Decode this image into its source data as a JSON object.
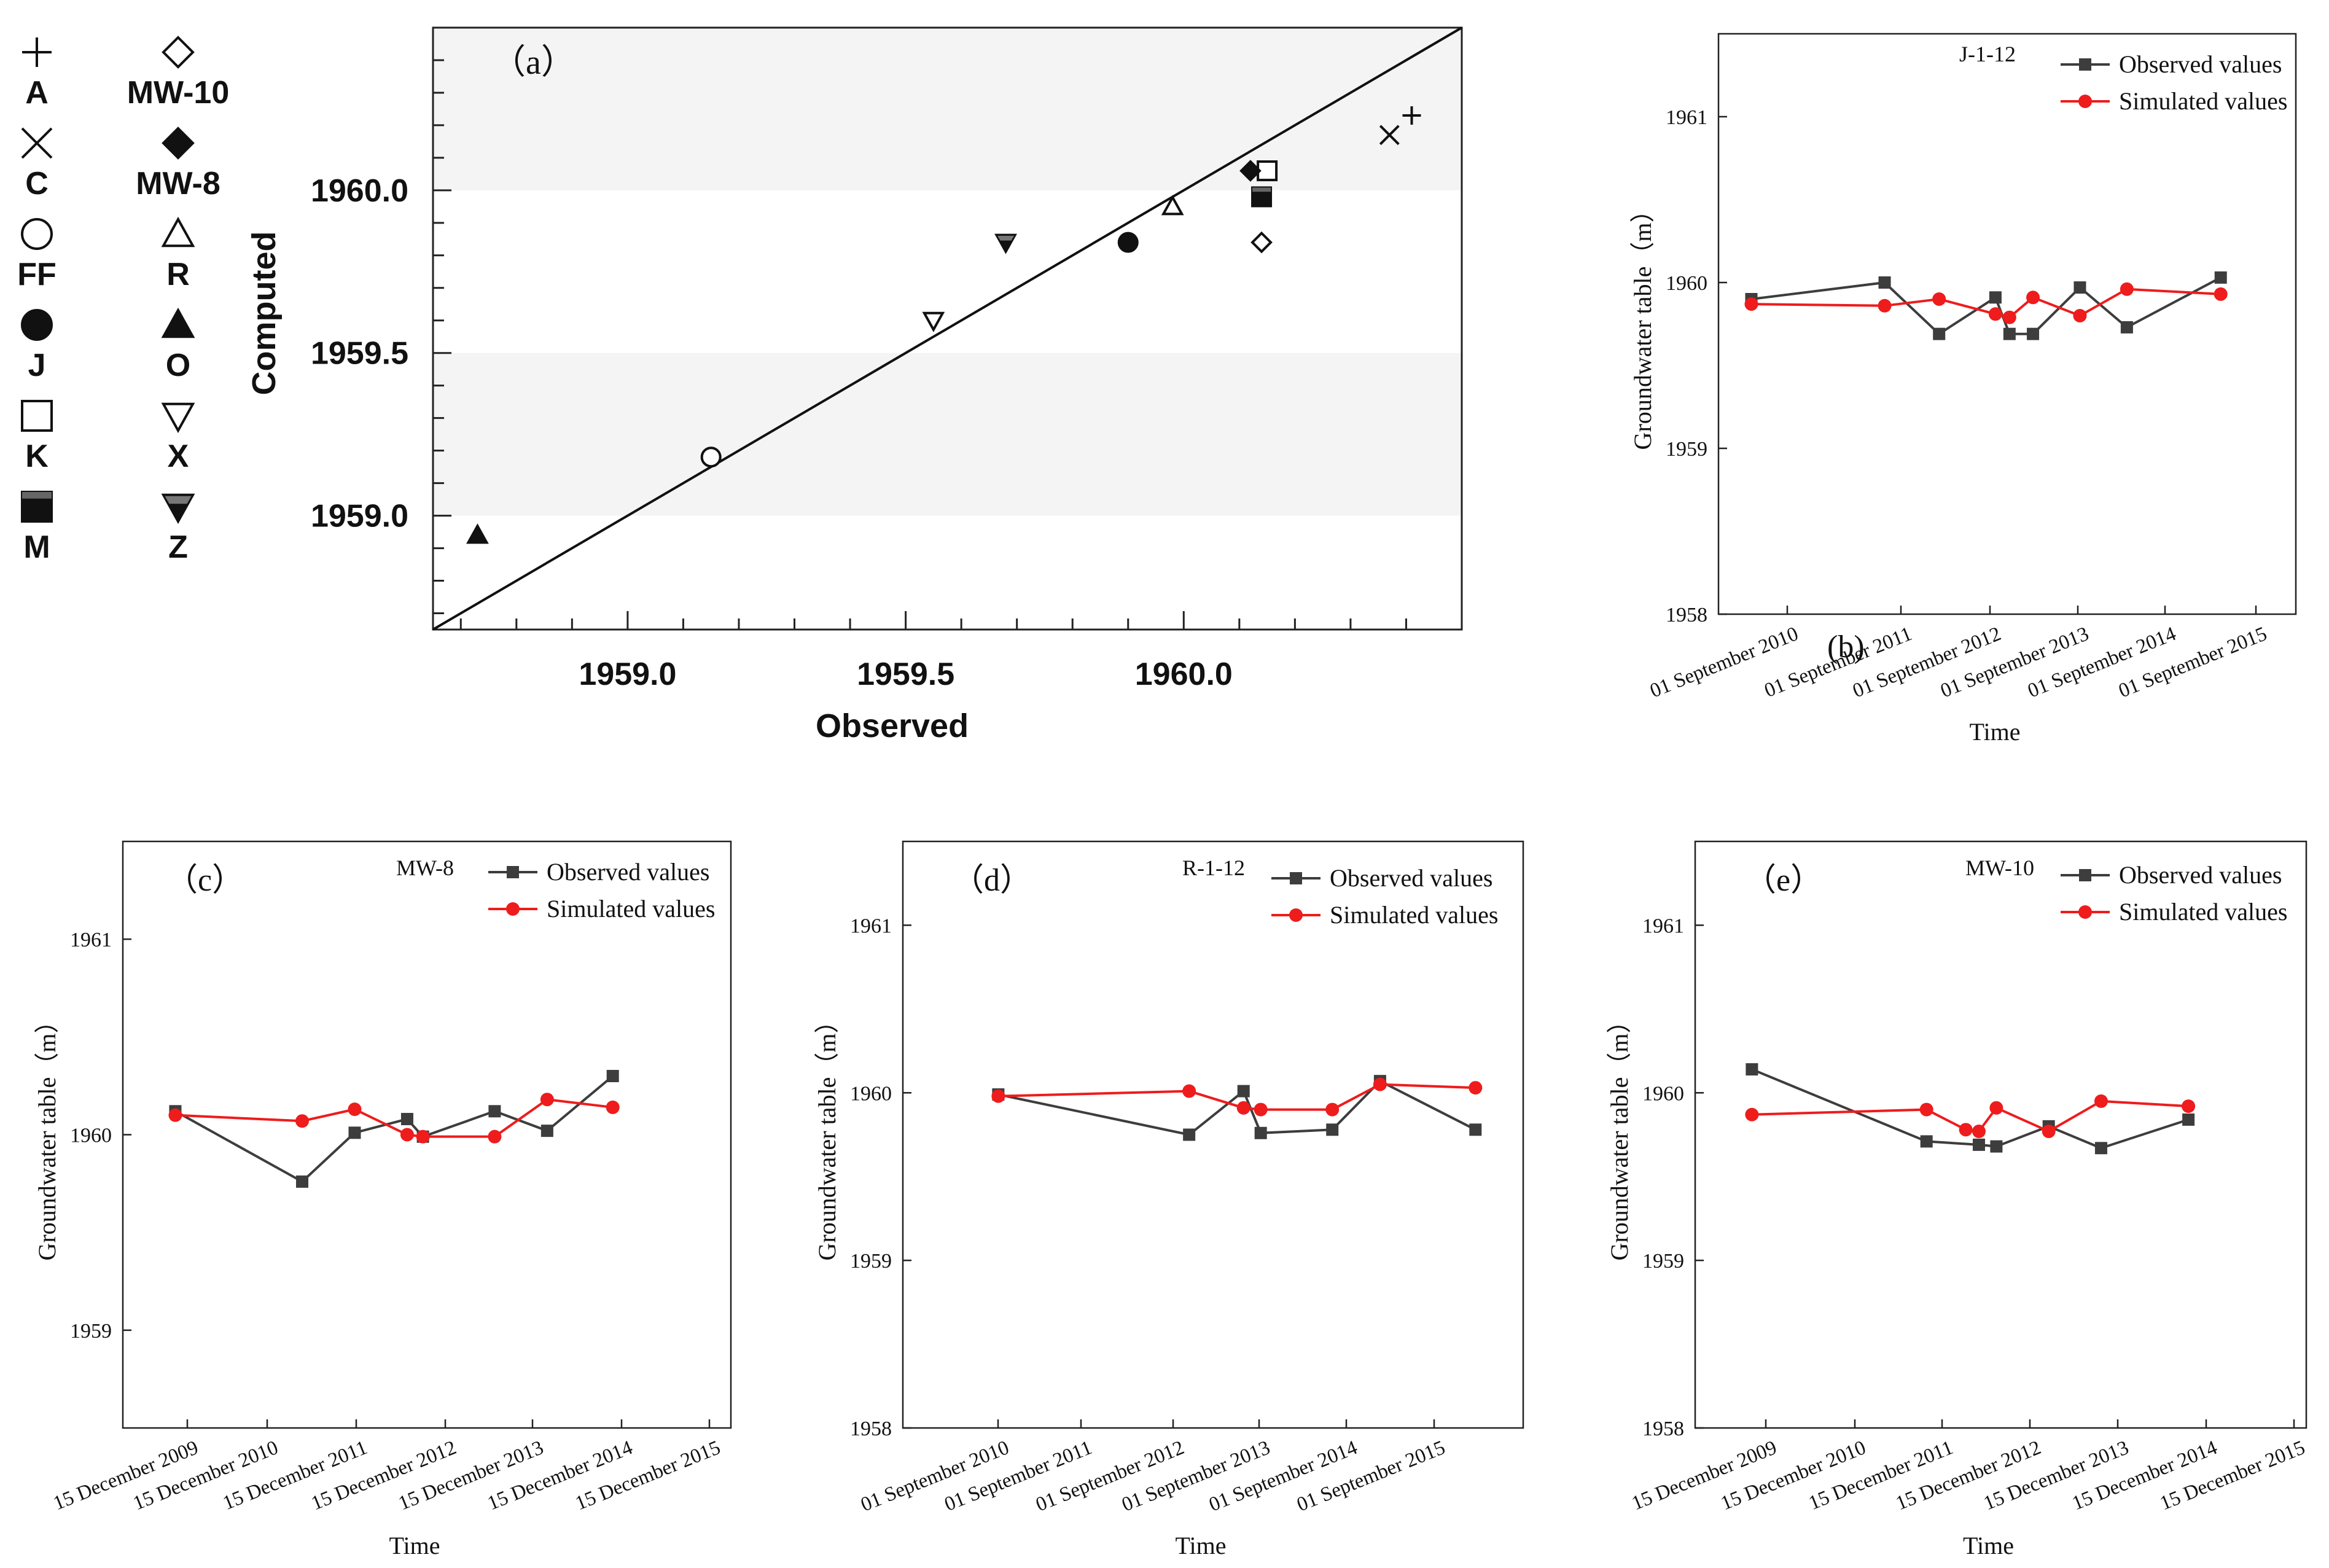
{
  "chart_data": [
    {
      "id": "a",
      "type": "scatter",
      "panel_label": "（a）",
      "xlabel": "Observed",
      "ylabel": "Computed",
      "xlim": [
        1958.65,
        1960.5
      ],
      "ylim": [
        1958.65,
        1960.5
      ],
      "x_ticks": [
        "1959.0",
        "1959.5",
        "1960.0"
      ],
      "y_ticks": [
        "1959.0",
        "1959.5",
        "1960.0"
      ],
      "x_tick_values": [
        1959.0,
        1959.5,
        1960.0
      ],
      "y_tick_values": [
        1959.0,
        1959.5,
        1960.0
      ],
      "shaded_bands": [
        [
          1959.0,
          1959.5
        ],
        [
          1960.0,
          1960.5
        ]
      ],
      "reference_line": "1:1",
      "legend_placement": "left",
      "points": [
        {
          "name": "A",
          "marker": "plus",
          "x": 1960.41,
          "y": 1960.23
        },
        {
          "name": "C",
          "marker": "cross",
          "x": 1960.37,
          "y": 1960.17
        },
        {
          "name": "FF",
          "marker": "circle-open",
          "x": 1959.15,
          "y": 1959.18
        },
        {
          "name": "J",
          "marker": "circle-half",
          "x": 1959.9,
          "y": 1959.84
        },
        {
          "name": "K",
          "marker": "square-open",
          "x": 1960.15,
          "y": 1960.06
        },
        {
          "name": "M",
          "marker": "square-half",
          "x": 1960.14,
          "y": 1959.98
        },
        {
          "name": "MW-10",
          "marker": "diamond-open",
          "x": 1960.14,
          "y": 1959.84
        },
        {
          "name": "MW-8",
          "marker": "diamond-filled",
          "x": 1960.12,
          "y": 1960.06
        },
        {
          "name": "R",
          "marker": "triangle-open",
          "x": 1959.98,
          "y": 1959.95
        },
        {
          "name": "O",
          "marker": "triangle-filled",
          "x": 1958.73,
          "y": 1958.94
        },
        {
          "name": "X",
          "marker": "triangle-down-open",
          "x": 1959.55,
          "y": 1959.6
        },
        {
          "name": "Z",
          "marker": "triangle-down-half",
          "x": 1959.68,
          "y": 1959.84
        }
      ],
      "legend_columns": [
        [
          "A",
          "C",
          "FF",
          "J",
          "K",
          "M"
        ],
        [
          "MW-10",
          "MW-8",
          "R",
          "O",
          "X",
          "Z"
        ]
      ]
    },
    {
      "id": "b",
      "type": "line",
      "panel_label": "(b)",
      "well": "J-1-12",
      "xlabel": "Time",
      "ylabel": "Groundwater table（m）",
      "x_ticks": [
        "01 September 2010",
        "01 September 2011",
        "01 September 2012",
        "01 September 2013",
        "01 September 2014",
        "01 September 2015"
      ],
      "y_ticks": [
        "1958",
        "1959",
        "1960",
        "1961"
      ],
      "y_tick_values": [
        1958,
        1959,
        1960,
        1961
      ],
      "xlim": [
        2009.65,
        2015.8
      ],
      "ylim": [
        1958,
        1961.5
      ],
      "series": [
        {
          "name": "Observed values",
          "color": "#3d3d3d",
          "marker": "square",
          "x": [
            2010.0,
            2011.42,
            2012.0,
            2012.6,
            2012.75,
            2013.0,
            2013.5,
            2014.0,
            2015.0
          ],
          "y": [
            1959.9,
            1960.0,
            1959.69,
            1959.91,
            1959.69,
            1959.69,
            1959.97,
            1959.73,
            1960.03
          ]
        },
        {
          "name": "Simulated values",
          "color": "#ee1c1c",
          "marker": "circle",
          "x": [
            2010.0,
            2011.42,
            2012.0,
            2012.6,
            2012.75,
            2013.0,
            2013.5,
            2014.0,
            2015.0
          ],
          "y": [
            1959.87,
            1959.86,
            1959.9,
            1959.81,
            1959.79,
            1959.91,
            1959.8,
            1959.96,
            1959.93
          ]
        }
      ]
    },
    {
      "id": "c",
      "type": "line",
      "panel_label": "（c）",
      "well": "MW-8",
      "xlabel": "Time",
      "ylabel": "Groundwater table（m）",
      "x_ticks": [
        "15 December 2009",
        "15 December 2010",
        "15 December 2011",
        "15 December 2012",
        "15 December 2013",
        "15 December 2014",
        "15 December 2015"
      ],
      "y_ticks": [
        "1959",
        "1960",
        "1961"
      ],
      "y_tick_values": [
        1959,
        1960,
        1961
      ],
      "xlim": [
        2009.35,
        2016.3
      ],
      "ylim": [
        1958.5,
        1961.5
      ],
      "series": [
        {
          "name": "Observed values",
          "color": "#3d3d3d",
          "marker": "square",
          "x": [
            2009.95,
            2011.4,
            2012.0,
            2012.6,
            2012.78,
            2013.6,
            2014.2,
            2014.95
          ],
          "y": [
            1960.12,
            1959.76,
            1960.01,
            1960.08,
            1959.99,
            1960.12,
            1960.02,
            1960.3
          ]
        },
        {
          "name": "Simulated values",
          "color": "#ee1c1c",
          "marker": "circle",
          "x": [
            2009.95,
            2011.4,
            2012.0,
            2012.6,
            2012.78,
            2013.6,
            2014.2,
            2014.95
          ],
          "y": [
            1960.1,
            1960.07,
            1960.13,
            1960.0,
            1959.99,
            1959.99,
            1960.18,
            1960.14
          ]
        }
      ]
    },
    {
      "id": "d",
      "type": "line",
      "panel_label": "（d）",
      "well": "R-1-12",
      "xlabel": "Time",
      "ylabel": "Groundwater table（m）",
      "x_ticks": [
        "01 September 2010",
        "01 September 2011",
        "01 September 2012",
        "01 September 2013",
        "01 September 2014",
        "01 September 2015"
      ],
      "y_ticks": [
        "1958",
        "1959",
        "1960",
        "1961"
      ],
      "y_tick_values": [
        1958,
        1959,
        1960,
        1961
      ],
      "xlim": [
        2009.0,
        2015.5
      ],
      "ylim": [
        1958,
        1961.5
      ],
      "series": [
        {
          "name": "Observed values",
          "color": "#3d3d3d",
          "marker": "square",
          "x": [
            2010.0,
            2012.0,
            2012.57,
            2012.75,
            2013.5,
            2014.0,
            2015.0
          ],
          "y": [
            1959.99,
            1959.75,
            1960.01,
            1959.76,
            1959.78,
            1960.07,
            1959.78
          ]
        },
        {
          "name": "Simulated values",
          "color": "#ee1c1c",
          "marker": "circle",
          "x": [
            2010.0,
            2012.0,
            2012.57,
            2012.75,
            2013.5,
            2014.0,
            2015.0
          ],
          "y": [
            1959.98,
            1960.01,
            1959.91,
            1959.9,
            1959.9,
            1960.05,
            1960.03
          ]
        }
      ]
    },
    {
      "id": "e",
      "type": "line",
      "panel_label": "（e）",
      "well": "MW-10",
      "xlabel": "Time",
      "ylabel": "Groundwater table（m）",
      "x_ticks": [
        "15 December 2009",
        "15 December 2010",
        "15 December 2011",
        "15 December 2012",
        "15 December 2013",
        "15 December 2014",
        "15 December 2015"
      ],
      "y_ticks": [
        "1958",
        "1959",
        "1960",
        "1961"
      ],
      "y_tick_values": [
        1958,
        1959,
        1960,
        1961
      ],
      "xlim": [
        2009.3,
        2016.3
      ],
      "ylim": [
        1958,
        1961.5
      ],
      "series": [
        {
          "name": "Observed values",
          "color": "#3d3d3d",
          "marker": "square",
          "x": [
            2009.95,
            2011.95,
            2012.55,
            2012.75,
            2013.35,
            2013.95,
            2014.95
          ],
          "y": [
            1960.14,
            1959.71,
            1959.69,
            1959.68,
            1959.8,
            1959.67,
            1959.84
          ]
        },
        {
          "name": "Simulated values",
          "color": "#ee1c1c",
          "marker": "circle",
          "x": [
            2009.95,
            2011.95,
            2012.4,
            2012.55,
            2012.75,
            2013.35,
            2013.95,
            2014.95
          ],
          "y": [
            1959.87,
            1959.9,
            1959.78,
            1959.77,
            1959.91,
            1959.77,
            1959.95,
            1959.92
          ]
        }
      ]
    }
  ]
}
